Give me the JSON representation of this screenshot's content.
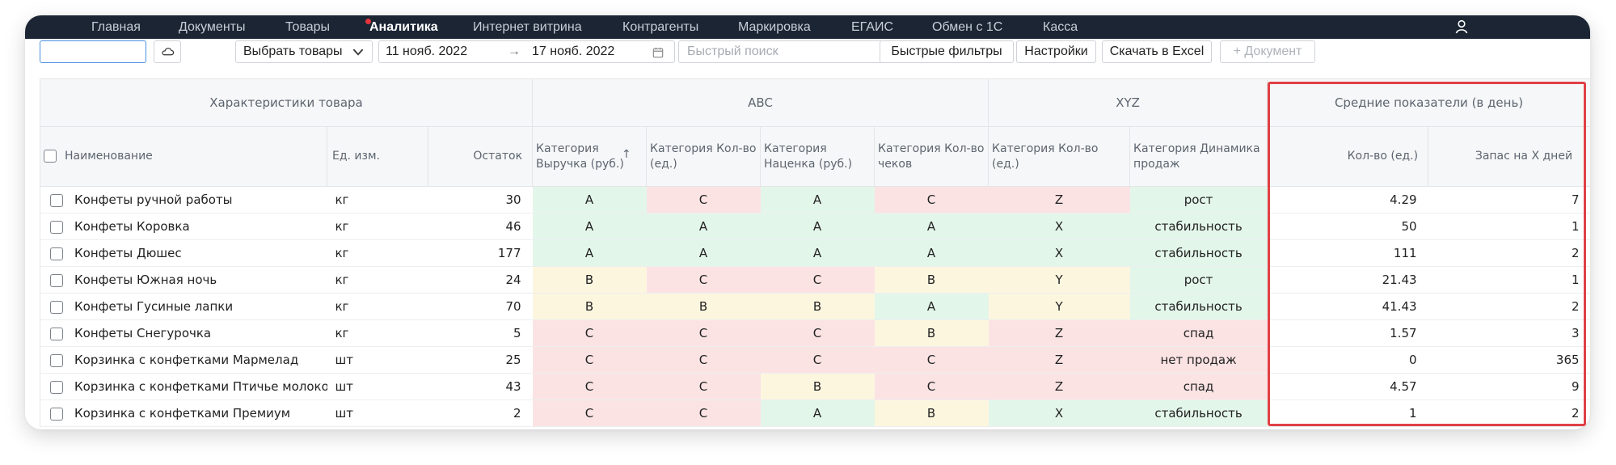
{
  "nav": {
    "items": [
      {
        "label": "Главная",
        "active": false
      },
      {
        "label": "Документы",
        "active": false
      },
      {
        "label": "Товары",
        "active": false
      },
      {
        "label": "Аналитика",
        "active": true
      },
      {
        "label": "Интернет витрина",
        "active": false
      },
      {
        "label": "Контрагенты",
        "active": false
      },
      {
        "label": "Маркировка",
        "active": false
      },
      {
        "label": "ЕГАИС",
        "active": false
      },
      {
        "label": "Обмен с 1С",
        "active": false
      },
      {
        "label": "Касса",
        "active": false
      }
    ],
    "user_icon": "user-icon"
  },
  "toolbar": {
    "search_value": "",
    "cloud_icon": "cloud-icon",
    "select_goods_label": "Выбрать товары",
    "date_from": "11 нояб. 2022",
    "date_arrow": "→",
    "date_to": "17 нояб. 2022",
    "calendar_icon": "calendar-icon",
    "quick_search_placeholder": "Быстрый поиск",
    "quick_filters_label": "Быстрые фильтры",
    "settings_label": "Настройки",
    "excel_label": "Скачать в Excel",
    "document_label": "+ Документ"
  },
  "table": {
    "groups": [
      "Характеристики товара",
      "ABC",
      "XYZ",
      "Средние показатели (в день)"
    ],
    "columns": {
      "name": "Наименование",
      "unit": "Ед. изм.",
      "stock": "Остаток",
      "abc_revenue": "Категория Выручка (руб.)",
      "sort_arrow": "↑",
      "abc_qty": "Категория Кол-во (ед.)",
      "abc_markup": "Категория Наценка (руб.)",
      "abc_checks": "Категория Кол-во чеков",
      "xyz_qty": "Категория Кол-во (ед.)",
      "xyz_dynamics": "Категория Динамика продаж",
      "avg_qty": "Кол-во (ед.)",
      "avg_stock_days": "Запас на X дней"
    },
    "rows": [
      {
        "name": "Конфеты ручной работы",
        "unit": "кг",
        "stock": "30",
        "abc_revenue": "A",
        "abc_qty": "C",
        "abc_markup": "A",
        "abc_checks": "C",
        "xyz_qty": "Z",
        "dynamics": "рост",
        "avg_qty": "4.29",
        "stock_days": "7"
      },
      {
        "name": "Конфеты Коровка",
        "unit": "кг",
        "stock": "46",
        "abc_revenue": "A",
        "abc_qty": "A",
        "abc_markup": "A",
        "abc_checks": "A",
        "xyz_qty": "X",
        "dynamics": "стабильность",
        "avg_qty": "50",
        "stock_days": "1"
      },
      {
        "name": "Конфеты Дюшес",
        "unit": "кг",
        "stock": "177",
        "abc_revenue": "A",
        "abc_qty": "A",
        "abc_markup": "A",
        "abc_checks": "A",
        "xyz_qty": "X",
        "dynamics": "стабильность",
        "avg_qty": "111",
        "stock_days": "2"
      },
      {
        "name": "Конфеты Южная ночь",
        "unit": "кг",
        "stock": "24",
        "abc_revenue": "B",
        "abc_qty": "C",
        "abc_markup": "C",
        "abc_checks": "B",
        "xyz_qty": "Y",
        "dynamics": "рост",
        "avg_qty": "21.43",
        "stock_days": "1"
      },
      {
        "name": "Конфеты Гусиные лапки",
        "unit": "кг",
        "stock": "70",
        "abc_revenue": "B",
        "abc_qty": "B",
        "abc_markup": "B",
        "abc_checks": "A",
        "xyz_qty": "Y",
        "dynamics": "стабильность",
        "avg_qty": "41.43",
        "stock_days": "2"
      },
      {
        "name": "Конфеты Снегурочка",
        "unit": "кг",
        "stock": "5",
        "abc_revenue": "C",
        "abc_qty": "C",
        "abc_markup": "C",
        "abc_checks": "B",
        "xyz_qty": "Z",
        "dynamics": "спад",
        "avg_qty": "1.57",
        "stock_days": "3"
      },
      {
        "name": "Корзинка с конфетками Мармелад",
        "unit": "шт",
        "stock": "25",
        "abc_revenue": "C",
        "abc_qty": "C",
        "abc_markup": "C",
        "abc_checks": "C",
        "xyz_qty": "Z",
        "dynamics": "нет продаж",
        "avg_qty": "0",
        "stock_days": "365"
      },
      {
        "name": "Корзинка с конфетками Птичье молоко",
        "unit": "шт",
        "stock": "43",
        "abc_revenue": "C",
        "abc_qty": "C",
        "abc_markup": "B",
        "abc_checks": "C",
        "xyz_qty": "Z",
        "dynamics": "спад",
        "avg_qty": "4.57",
        "stock_days": "9"
      },
      {
        "name": "Корзинка с конфетками Премиум",
        "unit": "шт",
        "stock": "2",
        "abc_revenue": "C",
        "abc_qty": "C",
        "abc_markup": "A",
        "abc_checks": "B",
        "xyz_qty": "X",
        "dynamics": "стабильность",
        "avg_qty": "1",
        "stock_days": "2"
      }
    ]
  },
  "colors": {
    "nav_bg": "#1b2534",
    "category_green": "#e3f6ea",
    "category_yellow": "#fcf6df",
    "category_red": "#fbe3e4",
    "highlight_border": "#e04045",
    "notification_dot": "#e5343d"
  }
}
